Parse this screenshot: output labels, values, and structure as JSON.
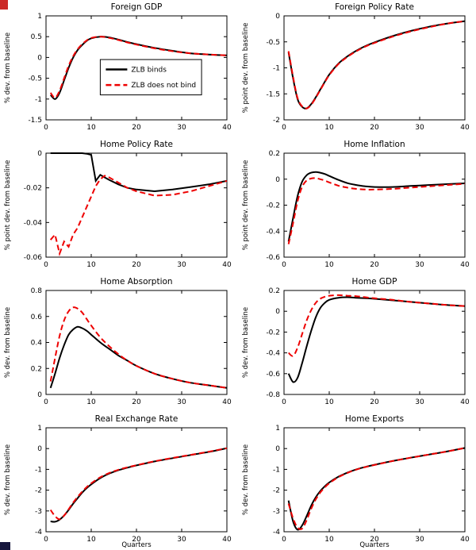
{
  "page": {
    "background": "#ffffff"
  },
  "legend": {
    "entries": [
      "ZLB binds",
      "ZLB does not bind"
    ]
  },
  "colors": {
    "zlb_binds": "#000000",
    "zlb_does_not_bind": "#ee0000"
  },
  "artifacts": {
    "top_left_color": "#cc2a27",
    "bottom_left_color": "#17173d"
  },
  "chart_data": [
    {
      "type": "line",
      "slug": "foreign-gdp",
      "title": "Foreign GDP",
      "ylabel": "% dev. from baseline",
      "xlabel": "",
      "xlim": [
        0,
        40
      ],
      "xticks": [
        0,
        10,
        20,
        30,
        40
      ],
      "ylim": [
        -1.5,
        1
      ],
      "yticks": [
        -1.5,
        -1,
        -0.5,
        0,
        0.5,
        1
      ],
      "legend": true,
      "series": [
        {
          "id": "zlb-binds",
          "name": "ZLB binds",
          "color": "#000000",
          "dash": false,
          "x": [
            1,
            2,
            3,
            4,
            5,
            6,
            7,
            8,
            9,
            10,
            12,
            14,
            16,
            18,
            20,
            24,
            28,
            32,
            36,
            40
          ],
          "y": [
            -0.9,
            -1.0,
            -0.85,
            -0.55,
            -0.25,
            0.0,
            0.18,
            0.3,
            0.4,
            0.46,
            0.5,
            0.48,
            0.43,
            0.37,
            0.32,
            0.23,
            0.16,
            0.1,
            0.07,
            0.05
          ]
        },
        {
          "id": "zlb-does-not-bind",
          "name": "ZLB does not bind",
          "color": "#ee0000",
          "dash": true,
          "x": [
            1,
            2,
            3,
            4,
            5,
            6,
            7,
            8,
            9,
            10,
            12,
            14,
            16,
            18,
            20,
            24,
            28,
            32,
            36,
            40
          ],
          "y": [
            -0.85,
            -0.97,
            -0.8,
            -0.5,
            -0.2,
            0.03,
            0.2,
            0.32,
            0.41,
            0.47,
            0.5,
            0.47,
            0.42,
            0.36,
            0.31,
            0.22,
            0.15,
            0.1,
            0.07,
            0.05
          ]
        }
      ]
    },
    {
      "type": "line",
      "slug": "foreign-policy-rate",
      "title": "Foreign Policy Rate",
      "ylabel": "% point dev. from baseline",
      "xlabel": "",
      "xlim": [
        0,
        40
      ],
      "xticks": [
        0,
        10,
        20,
        30,
        40
      ],
      "ylim": [
        -2,
        0
      ],
      "yticks": [
        -2,
        -1.5,
        -1,
        -0.5,
        0
      ],
      "legend": false,
      "series": [
        {
          "id": "zlb-binds",
          "name": "ZLB binds",
          "color": "#000000",
          "dash": false,
          "x": [
            1,
            2,
            3,
            4,
            5,
            6,
            7,
            8,
            9,
            10,
            12,
            14,
            16,
            18,
            20,
            24,
            28,
            32,
            36,
            40
          ],
          "y": [
            -0.7,
            -1.2,
            -1.6,
            -1.75,
            -1.78,
            -1.7,
            -1.57,
            -1.42,
            -1.27,
            -1.13,
            -0.92,
            -0.78,
            -0.67,
            -0.58,
            -0.51,
            -0.39,
            -0.29,
            -0.21,
            -0.15,
            -0.1
          ]
        },
        {
          "id": "zlb-does-not-bind",
          "name": "ZLB does not bind",
          "color": "#ee0000",
          "dash": true,
          "x": [
            1,
            2,
            3,
            4,
            5,
            6,
            7,
            8,
            9,
            10,
            12,
            14,
            16,
            18,
            20,
            24,
            28,
            32,
            36,
            40
          ],
          "y": [
            -0.68,
            -1.17,
            -1.58,
            -1.74,
            -1.78,
            -1.71,
            -1.58,
            -1.43,
            -1.28,
            -1.14,
            -0.93,
            -0.79,
            -0.68,
            -0.59,
            -0.52,
            -0.4,
            -0.3,
            -0.22,
            -0.15,
            -0.1
          ]
        }
      ]
    },
    {
      "type": "line",
      "slug": "home-policy-rate",
      "title": "Home Policy Rate",
      "ylabel": "% point dev. from baseline",
      "xlabel": "",
      "xlim": [
        0,
        40
      ],
      "xticks": [
        0,
        10,
        20,
        30,
        40
      ],
      "ylim": [
        -0.06,
        0
      ],
      "yticks": [
        -0.06,
        -0.04,
        -0.02,
        0
      ],
      "legend": false,
      "smooth": false,
      "series": [
        {
          "id": "zlb-binds",
          "name": "ZLB binds",
          "color": "#000000",
          "dash": false,
          "x": [
            1,
            2,
            3,
            4,
            5,
            6,
            7,
            8,
            9,
            10,
            11,
            12,
            13,
            14,
            16,
            18,
            20,
            24,
            28,
            32,
            36,
            40
          ],
          "y": [
            0,
            0,
            0,
            0,
            0,
            0,
            0,
            0,
            -0.0003,
            -0.001,
            -0.016,
            -0.0125,
            -0.014,
            -0.0155,
            -0.018,
            -0.02,
            -0.021,
            -0.022,
            -0.021,
            -0.0195,
            -0.018,
            -0.016
          ]
        },
        {
          "id": "zlb-does-not-bind",
          "name": "ZLB does not bind",
          "color": "#ee0000",
          "dash": true,
          "x": [
            1,
            2,
            3,
            4,
            5,
            6,
            7,
            8,
            9,
            10,
            11,
            12,
            13,
            14,
            16,
            18,
            20,
            24,
            28,
            32,
            36,
            40
          ],
          "y": [
            -0.05,
            -0.047,
            -0.058,
            -0.051,
            -0.054,
            -0.047,
            -0.043,
            -0.037,
            -0.031,
            -0.025,
            -0.019,
            -0.015,
            -0.013,
            -0.014,
            -0.017,
            -0.02,
            -0.022,
            -0.0245,
            -0.024,
            -0.022,
            -0.019,
            -0.016
          ]
        }
      ]
    },
    {
      "type": "line",
      "slug": "home-inflation",
      "title": "Home Inflation",
      "ylabel": "% point dev. from baseline",
      "xlabel": "",
      "xlim": [
        0,
        40
      ],
      "xticks": [
        0,
        10,
        20,
        30,
        40
      ],
      "ylim": [
        -0.6,
        0.2
      ],
      "yticks": [
        -0.6,
        -0.4,
        -0.2,
        0,
        0.2
      ],
      "legend": false,
      "series": [
        {
          "id": "zlb-binds",
          "name": "ZLB binds",
          "color": "#000000",
          "dash": false,
          "x": [
            1,
            2,
            3,
            4,
            5,
            6,
            7,
            8,
            9,
            10,
            12,
            14,
            16,
            18,
            20,
            24,
            28,
            32,
            36,
            40
          ],
          "y": [
            -0.48,
            -0.3,
            -0.13,
            -0.02,
            0.03,
            0.05,
            0.055,
            0.05,
            0.04,
            0.025,
            -0.005,
            -0.03,
            -0.045,
            -0.055,
            -0.06,
            -0.06,
            -0.052,
            -0.045,
            -0.038,
            -0.032
          ]
        },
        {
          "id": "zlb-does-not-bind",
          "name": "ZLB does not bind",
          "color": "#ee0000",
          "dash": true,
          "x": [
            1,
            2,
            3,
            4,
            5,
            6,
            7,
            8,
            9,
            10,
            12,
            14,
            16,
            18,
            20,
            24,
            28,
            32,
            36,
            40
          ],
          "y": [
            -0.5,
            -0.34,
            -0.17,
            -0.06,
            -0.01,
            0.005,
            0.008,
            0.0,
            -0.01,
            -0.025,
            -0.05,
            -0.065,
            -0.075,
            -0.08,
            -0.08,
            -0.075,
            -0.065,
            -0.055,
            -0.045,
            -0.035
          ]
        }
      ]
    },
    {
      "type": "line",
      "slug": "home-absorption",
      "title": "Home Absorption",
      "ylabel": "% dev. from baseline",
      "xlabel": "",
      "xlim": [
        0,
        40
      ],
      "xticks": [
        0,
        10,
        20,
        30,
        40
      ],
      "ylim": [
        0,
        0.8
      ],
      "yticks": [
        0,
        0.2,
        0.4,
        0.6,
        0.8
      ],
      "legend": false,
      "series": [
        {
          "id": "zlb-binds",
          "name": "ZLB binds",
          "color": "#000000",
          "dash": false,
          "x": [
            1,
            2,
            3,
            4,
            5,
            6,
            7,
            8,
            9,
            10,
            12,
            14,
            16,
            18,
            20,
            24,
            28,
            32,
            36,
            40
          ],
          "y": [
            0.05,
            0.16,
            0.28,
            0.38,
            0.46,
            0.5,
            0.52,
            0.51,
            0.49,
            0.46,
            0.4,
            0.35,
            0.3,
            0.26,
            0.22,
            0.16,
            0.12,
            0.09,
            0.07,
            0.05
          ]
        },
        {
          "id": "zlb-does-not-bind",
          "name": "ZLB does not bind",
          "color": "#ee0000",
          "dash": true,
          "x": [
            1,
            2,
            3,
            4,
            5,
            6,
            7,
            8,
            9,
            10,
            12,
            14,
            16,
            18,
            20,
            24,
            28,
            32,
            36,
            40
          ],
          "y": [
            0.1,
            0.28,
            0.45,
            0.57,
            0.64,
            0.67,
            0.66,
            0.63,
            0.58,
            0.53,
            0.44,
            0.37,
            0.31,
            0.26,
            0.22,
            0.16,
            0.12,
            0.09,
            0.07,
            0.05
          ]
        }
      ]
    },
    {
      "type": "line",
      "slug": "home-gdp",
      "title": "Home GDP",
      "ylabel": "% dev. from baseline",
      "xlabel": "",
      "xlim": [
        0,
        40
      ],
      "xticks": [
        0,
        10,
        20,
        30,
        40
      ],
      "ylim": [
        -0.8,
        0.2
      ],
      "yticks": [
        -0.8,
        -0.6,
        -0.4,
        -0.2,
        0,
        0.2
      ],
      "legend": false,
      "series": [
        {
          "id": "zlb-binds",
          "name": "ZLB binds",
          "color": "#000000",
          "dash": false,
          "x": [
            1,
            2,
            3,
            4,
            5,
            6,
            7,
            8,
            9,
            10,
            12,
            14,
            16,
            18,
            20,
            24,
            28,
            32,
            36,
            40
          ],
          "y": [
            -0.6,
            -0.68,
            -0.64,
            -0.5,
            -0.34,
            -0.19,
            -0.06,
            0.03,
            0.08,
            0.11,
            0.13,
            0.135,
            0.13,
            0.125,
            0.12,
            0.105,
            0.09,
            0.075,
            0.06,
            0.05
          ]
        },
        {
          "id": "zlb-does-not-bind",
          "name": "ZLB does not bind",
          "color": "#ee0000",
          "dash": true,
          "x": [
            1,
            2,
            3,
            4,
            5,
            6,
            7,
            8,
            9,
            10,
            12,
            14,
            16,
            18,
            20,
            24,
            28,
            32,
            36,
            40
          ],
          "y": [
            -0.4,
            -0.43,
            -0.35,
            -0.22,
            -0.09,
            0.01,
            0.08,
            0.12,
            0.14,
            0.15,
            0.155,
            0.15,
            0.145,
            0.135,
            0.125,
            0.11,
            0.09,
            0.075,
            0.06,
            0.05
          ]
        }
      ]
    },
    {
      "type": "line",
      "slug": "real-exchange-rate",
      "title": "Real Exchange Rate",
      "ylabel": "% dev. from baseline",
      "xlabel": "Quarters",
      "xlim": [
        0,
        40
      ],
      "xticks": [
        0,
        10,
        20,
        30,
        40
      ],
      "ylim": [
        -4,
        1
      ],
      "yticks": [
        -4,
        -3,
        -2,
        -1,
        0,
        1
      ],
      "legend": false,
      "series": [
        {
          "id": "zlb-binds",
          "name": "ZLB binds",
          "color": "#000000",
          "dash": false,
          "x": [
            1,
            2,
            3,
            4,
            5,
            6,
            7,
            8,
            9,
            10,
            12,
            14,
            16,
            18,
            20,
            24,
            28,
            32,
            36,
            40
          ],
          "y": [
            -3.5,
            -3.52,
            -3.42,
            -3.22,
            -2.95,
            -2.65,
            -2.38,
            -2.12,
            -1.9,
            -1.72,
            -1.42,
            -1.2,
            -1.04,
            -0.92,
            -0.81,
            -0.62,
            -0.46,
            -0.31,
            -0.16,
            0.02
          ]
        },
        {
          "id": "zlb-does-not-bind",
          "name": "ZLB does not bind",
          "color": "#ee0000",
          "dash": true,
          "x": [
            1,
            2,
            3,
            4,
            5,
            6,
            7,
            8,
            9,
            10,
            12,
            14,
            16,
            18,
            20,
            24,
            28,
            32,
            36,
            40
          ],
          "y": [
            -2.95,
            -3.25,
            -3.4,
            -3.22,
            -2.92,
            -2.6,
            -2.32,
            -2.07,
            -1.85,
            -1.67,
            -1.38,
            -1.17,
            -1.02,
            -0.9,
            -0.8,
            -0.61,
            -0.45,
            -0.3,
            -0.15,
            0.02
          ]
        }
      ]
    },
    {
      "type": "line",
      "slug": "home-exports",
      "title": "Home Exports",
      "ylabel": "% dev. from baseline",
      "xlabel": "Quarters",
      "xlim": [
        0,
        40
      ],
      "xticks": [
        0,
        10,
        20,
        30,
        40
      ],
      "ylim": [
        -4,
        1
      ],
      "yticks": [
        -4,
        -3,
        -2,
        -1,
        0,
        1
      ],
      "legend": false,
      "series": [
        {
          "id": "zlb-binds",
          "name": "ZLB binds",
          "color": "#000000",
          "dash": false,
          "x": [
            1,
            2,
            3,
            4,
            5,
            6,
            7,
            8,
            9,
            10,
            12,
            14,
            16,
            18,
            20,
            24,
            28,
            32,
            36,
            40
          ],
          "y": [
            -2.5,
            -3.5,
            -3.9,
            -3.7,
            -3.25,
            -2.75,
            -2.35,
            -2.05,
            -1.82,
            -1.63,
            -1.36,
            -1.16,
            -1.0,
            -0.88,
            -0.78,
            -0.6,
            -0.44,
            -0.29,
            -0.14,
            0.03
          ]
        },
        {
          "id": "zlb-does-not-bind",
          "name": "ZLB does not bind",
          "color": "#ee0000",
          "dash": true,
          "x": [
            1,
            2,
            3,
            4,
            5,
            6,
            7,
            8,
            9,
            10,
            12,
            14,
            16,
            18,
            20,
            24,
            28,
            32,
            36,
            40
          ],
          "y": [
            -2.65,
            -3.35,
            -3.8,
            -3.85,
            -3.45,
            -2.9,
            -2.45,
            -2.12,
            -1.87,
            -1.67,
            -1.38,
            -1.17,
            -1.01,
            -0.89,
            -0.79,
            -0.6,
            -0.44,
            -0.29,
            -0.14,
            0.03
          ]
        }
      ]
    }
  ]
}
